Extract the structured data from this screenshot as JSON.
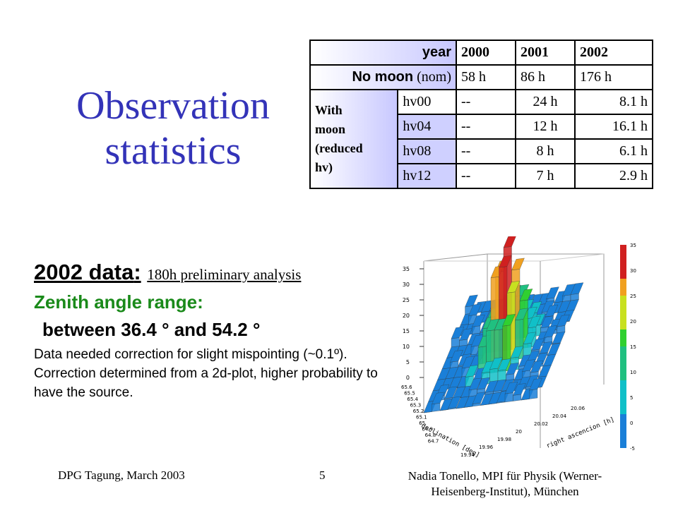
{
  "title": {
    "line1": "Observation",
    "line2": "statistics"
  },
  "table": {
    "header": {
      "label": "year",
      "years": [
        "2000",
        "2001",
        "2002"
      ]
    },
    "no_moon": {
      "label_bold": "No moon",
      "label_rest": "(nom)",
      "values": [
        "58  h",
        "86  h",
        "176  h"
      ]
    },
    "with_moon": {
      "label": [
        "With",
        "moon",
        "(reduced",
        "hv)"
      ],
      "rows": [
        {
          "hv": "hv00",
          "values": [
            "--",
            "24  h",
            "8.1 h"
          ]
        },
        {
          "hv": "hv04",
          "values": [
            "--",
            "12  h",
            "16.1 h"
          ]
        },
        {
          "hv": "hv08",
          "values": [
            "--",
            "8  h",
            "6.1 h"
          ]
        },
        {
          "hv": "hv12",
          "values": [
            "--",
            "7  h",
            "2.9  h"
          ]
        }
      ]
    }
  },
  "analysis": {
    "heading_bold": "2002 data",
    "heading_colon": ":",
    "heading_small": "180h preliminary analysis",
    "zenith_label": "Zenith angle range:",
    "zenith_range": "between 36.4 ° and 54.2 °",
    "note": "Data needed correction for slight mispointing (~0.1º). Correction determined from a 2d-plot, higher probability to have the source."
  },
  "plot": {
    "zaxis_ticks": [
      "0",
      "5",
      "10",
      "15",
      "20",
      "25",
      "30",
      "35"
    ],
    "colorbar_ticks": [
      "35",
      "30",
      "25",
      "20",
      "15",
      "10",
      "5",
      "0",
      "-5"
    ],
    "decl_ticks": [
      "65.6",
      "65.5",
      "65.4",
      "65.3",
      "65.2",
      "65.1",
      "65",
      "64.9",
      "64.8",
      "64.7"
    ],
    "ra_ticks": [
      "19.94",
      "19.96",
      "19.98",
      "20",
      "20.02",
      "20.04",
      "20.06"
    ],
    "decl_label": "declination [deg]",
    "ra_label": "right ascencion [h]"
  },
  "footer": {
    "left": "DPG Tagung, March 2003",
    "page": "5",
    "right_line1": "Nadia Tonello, MPI für Physik (Werner-",
    "right_line2": "Heisenberg-Institut), München"
  }
}
